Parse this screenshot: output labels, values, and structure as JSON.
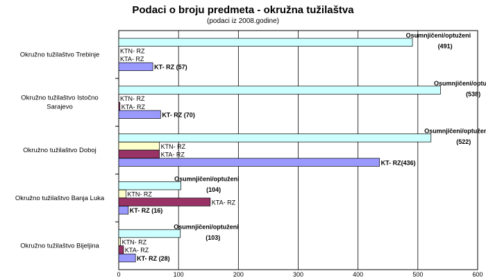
{
  "chart_data": {
    "type": "bar",
    "orientation": "horizontal",
    "title": "Podaci o broju predmeta - okružna tužilaštva",
    "subtitle": "(podaci iz 2008.godine)",
    "xlim": [
      0,
      600
    ],
    "xticks": [
      "0",
      "100",
      "200",
      "300",
      "400",
      "500",
      "600"
    ],
    "grid": true,
    "categories": [
      {
        "label_lines": [
          "Okružno tužilaštvo Trebinje"
        ]
      },
      {
        "label_lines": [
          "Okružno tužilaštvo Istočno",
          "Sarajevo"
        ]
      },
      {
        "label_lines": [
          "Okružno tužilaštvo Doboj"
        ]
      },
      {
        "label_lines": [
          "Okružno tužilaštvo Banja Luka"
        ]
      },
      {
        "label_lines": [
          "Okružno tužilaštvo Bijeljina"
        ]
      }
    ],
    "series": [
      {
        "key": "osumnjiceni",
        "color": "#ccffff",
        "values": [
          491,
          538,
          522,
          104,
          103
        ],
        "labels": [
          [
            "Osumnjičeni/optuženi",
            "(491)"
          ],
          [
            "Osumnjičeni/optuženi",
            "(538)"
          ],
          [
            "Osumnjičeni/optuženi",
            "(522)"
          ],
          [
            "Osumnjičeni/optuženi",
            "(104)"
          ],
          [
            "Osumnjičeni/optuženi",
            "(103)"
          ]
        ],
        "bold": true
      },
      {
        "key": "ktn",
        "color": "#ffffcc",
        "values": [
          0,
          0,
          68,
          12,
          3
        ],
        "labels": [
          [
            "KTN- RZ"
          ],
          [
            "KTN- RZ"
          ],
          [
            "KTN- RZ"
          ],
          [
            "KTN- RZ"
          ],
          [
            "KTN- RZ"
          ]
        ],
        "bold": false
      },
      {
        "key": "kta",
        "color": "#993366",
        "values": [
          0,
          2,
          68,
          153,
          8
        ],
        "labels": [
          [
            "KTA- RZ"
          ],
          [
            "KTA- RZ"
          ],
          [
            "KTA- RZ"
          ],
          [
            "KTA- RZ"
          ],
          [
            "KTA- RZ"
          ]
        ],
        "bold": false
      },
      {
        "key": "kt",
        "color": "#9999ff",
        "values": [
          57,
          70,
          436,
          16,
          28
        ],
        "labels": [
          [
            "KT- RZ (57)"
          ],
          [
            "KT- RZ (70)"
          ],
          [
            "KT- RZ(436)"
          ],
          [
            "KT- RZ (16)"
          ],
          [
            "KT- RZ (28)"
          ]
        ],
        "bold": true
      }
    ]
  }
}
